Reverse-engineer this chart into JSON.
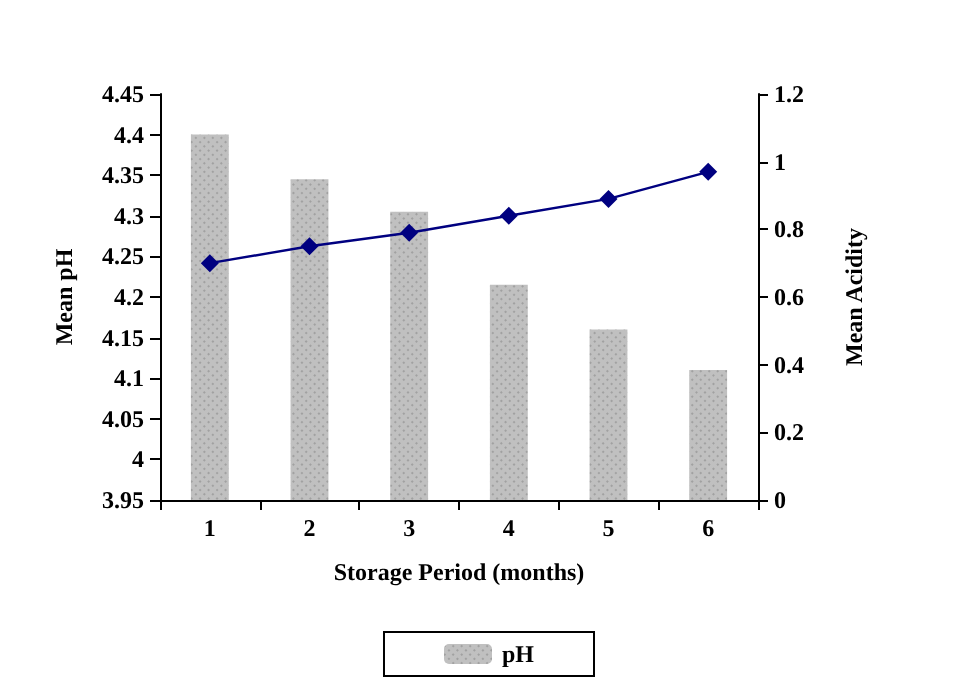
{
  "chart_data": {
    "type": "bar",
    "xlabel": "Storage Period (months)",
    "ylabel": "Mean pH",
    "y2label": "Mean Acidity",
    "categories": [
      "1",
      "2",
      "3",
      "4",
      "5",
      "6"
    ],
    "series": [
      {
        "name": "pH",
        "color": "#c0c0c0",
        "values": [
          4.4,
          4.345,
          4.305,
          4.215,
          4.16,
          4.11
        ]
      },
      {
        "type": "line",
        "axis": "y2",
        "color": "#000080",
        "marker": "diamond",
        "values": [
          0.7,
          0.75,
          0.79,
          0.84,
          0.89,
          0.97
        ]
      }
    ],
    "ylim": [
      3.95,
      4.45
    ],
    "yticks": [
      3.95,
      4,
      4.05,
      4.1,
      4.15,
      4.2,
      4.25,
      4.3,
      4.35,
      4.4,
      4.45
    ],
    "y2lim": [
      0,
      1.2
    ],
    "y2ticks": [
      0,
      0.2,
      0.4,
      0.6,
      0.8,
      1,
      1.2
    ],
    "grid": false,
    "legend": "bottom"
  }
}
